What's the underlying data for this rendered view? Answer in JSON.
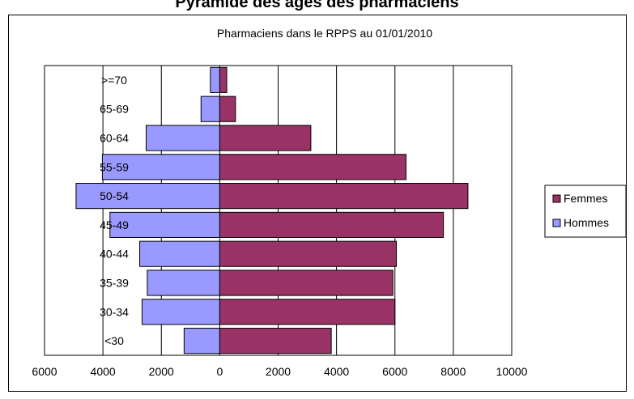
{
  "page_title": "Pyramide des âges des pharmaciens",
  "chart_data": {
    "type": "bar",
    "orientation": "horizontal",
    "layout": "population-pyramid",
    "title": "Pharmaciens dans le RPPS au 01/01/2010",
    "categories": [
      ">=70",
      "65-69",
      "60-64",
      "55-59",
      "50-54",
      "45-49",
      "40-44",
      "35-39",
      "30-34",
      "<30"
    ],
    "series": [
      {
        "name": "Hommes",
        "color": "#9999ff",
        "direction": "left",
        "values": [
          320,
          640,
          2520,
          4020,
          4920,
          3760,
          2740,
          2480,
          2660,
          1220
        ]
      },
      {
        "name": "Femmes",
        "color": "#993366",
        "direction": "right",
        "values": [
          240,
          540,
          3120,
          6380,
          8500,
          7660,
          6050,
          5930,
          6000,
          3820
        ]
      }
    ],
    "xlim": [
      -6000,
      10000
    ],
    "xtick_values": [
      -6000,
      -4000,
      -2000,
      0,
      2000,
      4000,
      6000,
      8000,
      10000
    ],
    "xtick_labels": [
      "6000",
      "4000",
      "2000",
      "0",
      "2000",
      "4000",
      "6000",
      "8000",
      "10000"
    ],
    "legend": {
      "placement": "right",
      "entries": [
        "Femmes",
        "Hommes"
      ]
    },
    "grid": true,
    "plot_background": "#ffffff",
    "gridline_color": "#000000"
  }
}
